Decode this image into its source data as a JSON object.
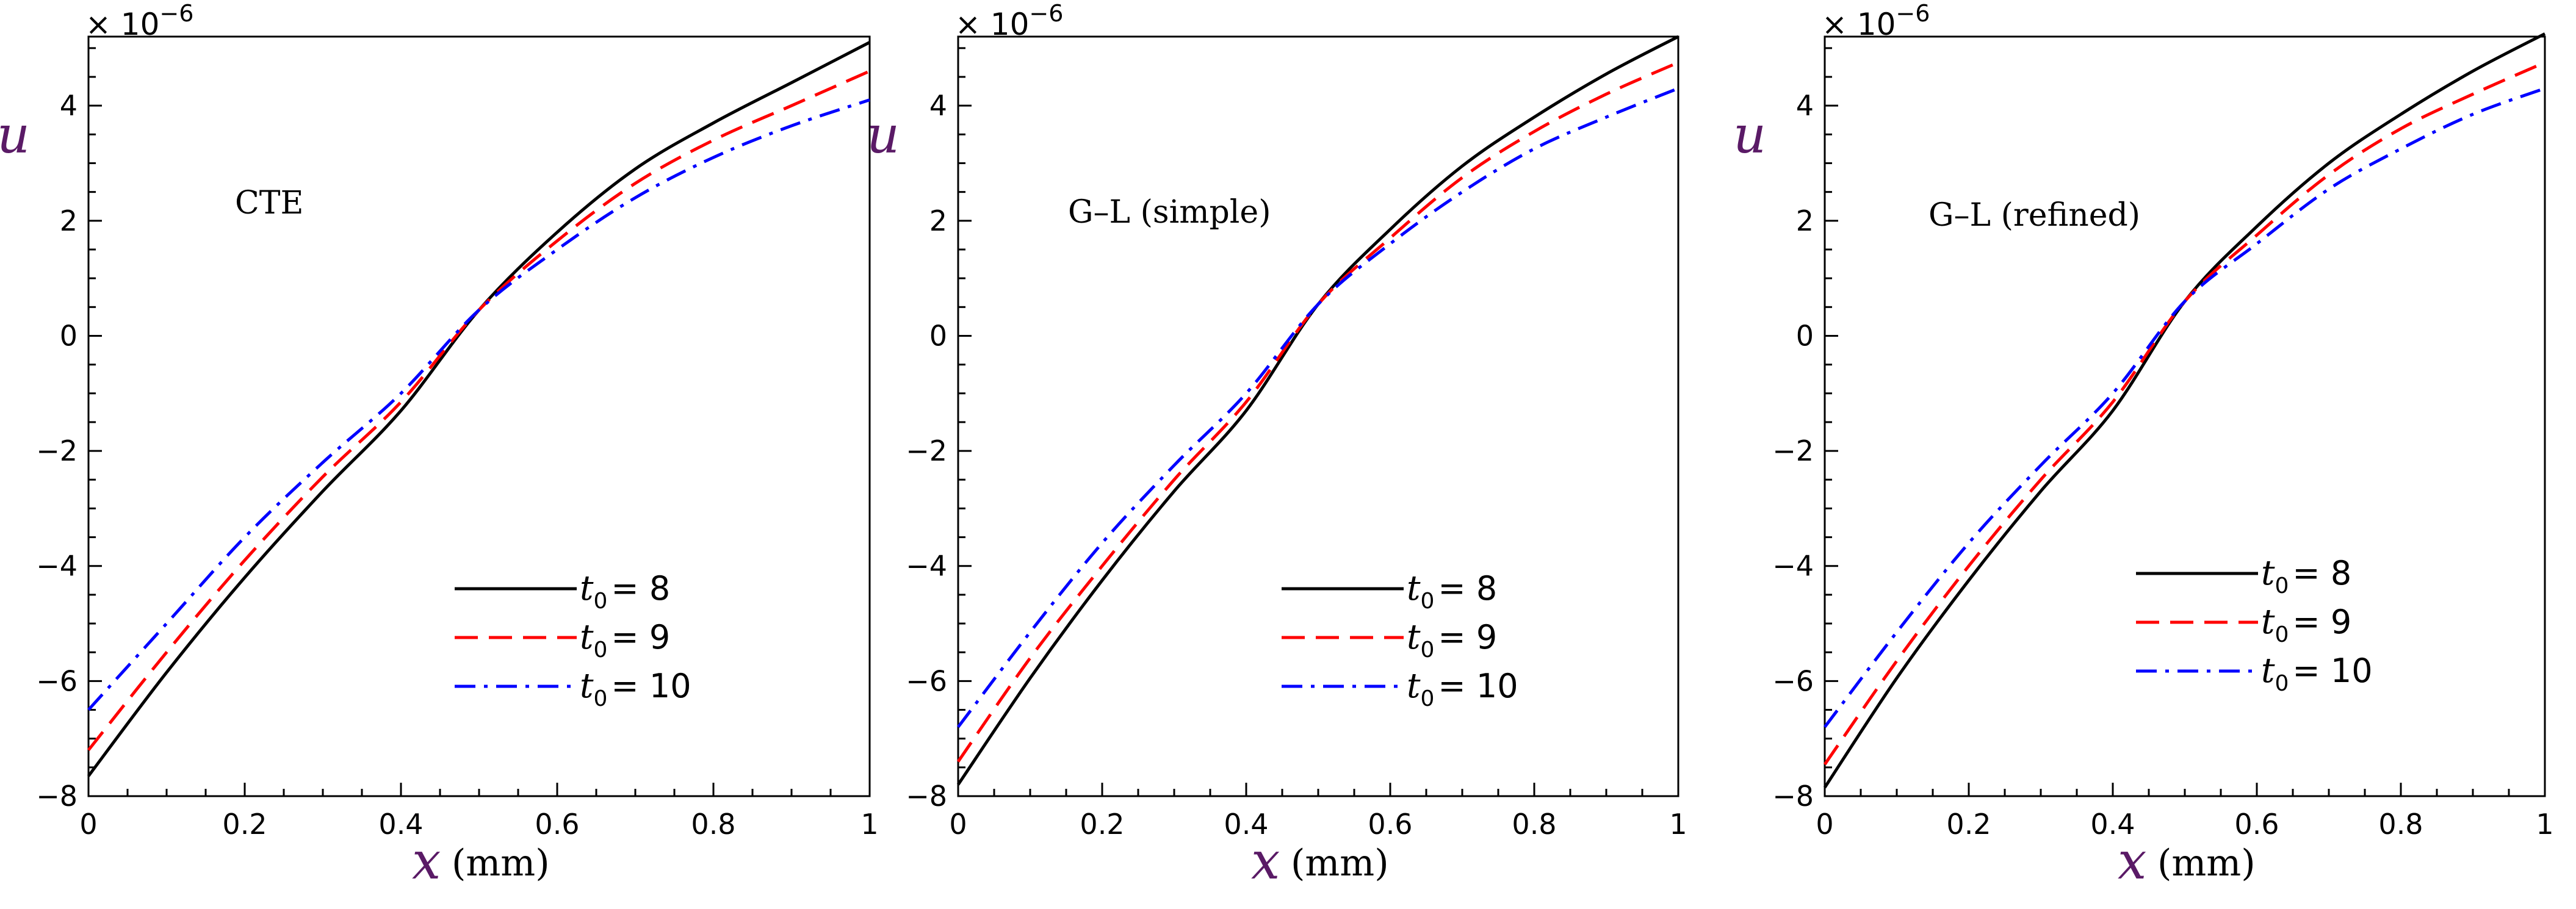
{
  "chart_data": [
    {
      "type": "line",
      "title": "CTE",
      "scale_label": "× 10",
      "scale_exponent": "−6",
      "xlabel_var": "x",
      "xlabel_unit": "(mm)",
      "ylabel_var": "u",
      "xlim": [
        0,
        1
      ],
      "ylim": [
        -8,
        5.2
      ],
      "x_ticks": [
        "0",
        "0.2",
        "0.4",
        "0.6",
        "0.8",
        "1"
      ],
      "y_ticks": [
        "−8",
        "−6",
        "−4",
        "−2",
        "0",
        "2",
        "4"
      ],
      "x": [
        0,
        0.1,
        0.2,
        0.3,
        0.4,
        0.5,
        0.6,
        0.7,
        0.8,
        0.9,
        1.0
      ],
      "series": [
        {
          "name_var": "t",
          "name_sub": "0",
          "name_rest": "= 8",
          "color": "#000000",
          "dash": "solid",
          "values": [
            -7.65,
            -5.85,
            -4.2,
            -2.7,
            -1.3,
            0.45,
            1.8,
            2.9,
            3.7,
            4.4,
            5.1
          ]
        },
        {
          "name_var": "t",
          "name_sub": "0",
          "name_rest": "= 9",
          "color": "#ff0000",
          "dash": "dashed",
          "values": [
            -7.2,
            -5.5,
            -3.9,
            -2.45,
            -1.15,
            0.45,
            1.65,
            2.65,
            3.4,
            4.0,
            4.6
          ]
        },
        {
          "name_var": "t",
          "name_sub": "0",
          "name_rest": "= 10",
          "color": "#0000ff",
          "dash": "dashdot",
          "values": [
            -6.5,
            -5.0,
            -3.5,
            -2.2,
            -1.0,
            0.45,
            1.5,
            2.4,
            3.1,
            3.65,
            4.1
          ]
        }
      ]
    },
    {
      "type": "line",
      "title": "G–L (simple)",
      "scale_label": "× 10",
      "scale_exponent": "−6",
      "xlabel_var": "x",
      "xlabel_unit": "(mm)",
      "ylabel_var": "u",
      "xlim": [
        0,
        1
      ],
      "ylim": [
        -8,
        5.2
      ],
      "x_ticks": [
        "0",
        "0.2",
        "0.4",
        "0.6",
        "0.8",
        "1"
      ],
      "y_ticks": [
        "−8",
        "−6",
        "−4",
        "−2",
        "0",
        "2",
        "4"
      ],
      "x": [
        0,
        0.1,
        0.2,
        0.3,
        0.4,
        0.5,
        0.6,
        0.7,
        0.8,
        0.9,
        1.0
      ],
      "series": [
        {
          "name_var": "t",
          "name_sub": "0",
          "name_rest": "= 8",
          "color": "#000000",
          "dash": "solid",
          "values": [
            -7.8,
            -5.95,
            -4.25,
            -2.7,
            -1.3,
            0.55,
            1.85,
            2.95,
            3.8,
            4.55,
            5.2
          ]
        },
        {
          "name_var": "t",
          "name_sub": "0",
          "name_rest": "= 9",
          "color": "#ff0000",
          "dash": "dashed",
          "values": [
            -7.4,
            -5.6,
            -4.0,
            -2.5,
            -1.15,
            0.55,
            1.7,
            2.75,
            3.55,
            4.2,
            4.75
          ]
        },
        {
          "name_var": "t",
          "name_sub": "0",
          "name_rest": "= 10",
          "color": "#0000ff",
          "dash": "dashdot",
          "values": [
            -6.8,
            -5.15,
            -3.6,
            -2.25,
            -1.0,
            0.55,
            1.6,
            2.5,
            3.25,
            3.8,
            4.3
          ]
        }
      ]
    },
    {
      "type": "line",
      "title": "G–L (refined)",
      "scale_label": "× 10",
      "scale_exponent": "−6",
      "xlabel_var": "x",
      "xlabel_unit": "(mm)",
      "ylabel_var": "u",
      "xlim": [
        0,
        1
      ],
      "ylim": [
        -8,
        5.2
      ],
      "x_ticks": [
        "0",
        "0.2",
        "0.4",
        "0.6",
        "0.8",
        "1"
      ],
      "y_ticks": [
        "−8",
        "−6",
        "−4",
        "−2",
        "0",
        "2",
        "4"
      ],
      "x": [
        0,
        0.1,
        0.2,
        0.3,
        0.4,
        0.5,
        0.6,
        0.7,
        0.8,
        0.9,
        1.0
      ],
      "series": [
        {
          "name_var": "t",
          "name_sub": "0",
          "name_rest": "= 8",
          "color": "#000000",
          "dash": "solid",
          "values": [
            -7.85,
            -5.95,
            -4.25,
            -2.7,
            -1.3,
            0.6,
            1.9,
            3.0,
            3.85,
            4.6,
            5.25
          ]
        },
        {
          "name_var": "t",
          "name_sub": "0",
          "name_rest": "= 9",
          "color": "#ff0000",
          "dash": "dashed",
          "values": [
            -7.45,
            -5.65,
            -4.0,
            -2.5,
            -1.15,
            0.6,
            1.75,
            2.8,
            3.6,
            4.2,
            4.75
          ]
        },
        {
          "name_var": "t",
          "name_sub": "0",
          "name_rest": "= 10",
          "color": "#0000ff",
          "dash": "dashdot",
          "values": [
            -6.8,
            -5.15,
            -3.6,
            -2.25,
            -1.0,
            0.6,
            1.6,
            2.55,
            3.25,
            3.85,
            4.3
          ]
        }
      ]
    }
  ]
}
